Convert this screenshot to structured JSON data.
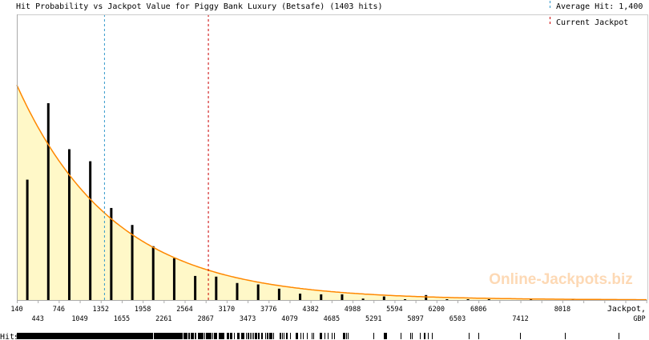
{
  "chart_data": {
    "type": "bar",
    "title": "Hit Probability vs Jackpot Value for Piggy Bank Luxury (Betsafe) (1403 hits)",
    "xlabel": "Jackpot, GBP",
    "ylabel": "",
    "rug_label": "Hits",
    "total_hits": 1403,
    "bin_start": 140,
    "bin_width": 303,
    "x_ticks_upper": [
      "140",
      "746",
      "1352",
      "1958",
      "2564",
      "3170",
      "3776",
      "4382",
      "4988",
      "5594",
      "6200",
      "6806",
      "8018"
    ],
    "x_ticks_lower": [
      "443",
      "1049",
      "1655",
      "2261",
      "2867",
      "3473",
      "4079",
      "4685",
      "5291",
      "5897",
      "6503",
      "7412"
    ],
    "xlim": [
      140,
      9000
    ],
    "bins": [
      0,
      1,
      2,
      3,
      4,
      5,
      6,
      7,
      8,
      9,
      10,
      11,
      12,
      13,
      14,
      15,
      16,
      17,
      18,
      19,
      20,
      21,
      22,
      24,
      26,
      29
    ],
    "values": [
      170,
      278,
      213,
      196,
      130,
      106,
      76,
      59,
      34,
      33,
      24,
      22,
      16,
      9,
      8,
      8,
      2,
      5,
      1,
      7,
      1,
      1,
      1,
      1,
      1,
      1
    ],
    "fit_curve": {
      "type": "exponential",
      "mean": 1400
    },
    "average_hit": 1400,
    "average_hit_label": "Average Hit: 1,400",
    "current_jackpot": 2900,
    "current_jackpot_label": "Current Jackpot",
    "watermark": "Online-Jackpots.biz",
    "colors": {
      "bar": "#000000",
      "fill": "#fff8c8",
      "curve": "#ff8800",
      "average": "#3399cc",
      "current": "#cc0000",
      "axis": "#aaaaaa",
      "watermark": "#fdd9b5"
    }
  }
}
